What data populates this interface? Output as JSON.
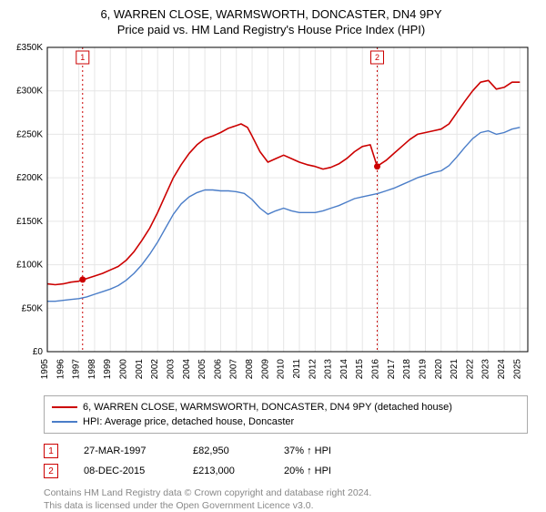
{
  "title_line1": "6, WARREN CLOSE, WARMSWORTH, DONCASTER, DN4 9PY",
  "title_line2": "Price paid vs. HM Land Registry's House Price Index (HPI)",
  "chart": {
    "type": "line",
    "plot_bg": "#ffffff",
    "grid_color": "#e6e6e6",
    "axis_color": "#000000",
    "xlim": [
      1995,
      2025.5
    ],
    "ylim": [
      0,
      350000
    ],
    "ytick_step": 50000,
    "yticks": [
      "£0",
      "£50K",
      "£100K",
      "£150K",
      "£200K",
      "£250K",
      "£300K",
      "£350K"
    ],
    "xticks": [
      1995,
      1996,
      1997,
      1998,
      1999,
      2000,
      2001,
      2002,
      2003,
      2004,
      2005,
      2006,
      2007,
      2008,
      2009,
      2010,
      2011,
      2012,
      2013,
      2014,
      2015,
      2016,
      2017,
      2018,
      2019,
      2020,
      2021,
      2022,
      2023,
      2024,
      2025
    ],
    "label_fontsize": 10,
    "series": [
      {
        "name": "6, WARREN CLOSE, WARMSWORTH, DONCASTER, DN4 9PY (detached house)",
        "color": "#cc0000",
        "width": 1.6,
        "data": [
          [
            1995,
            78000
          ],
          [
            1995.5,
            77000
          ],
          [
            1996,
            78000
          ],
          [
            1996.5,
            80000
          ],
          [
            1997,
            81000
          ],
          [
            1997.24,
            82950
          ],
          [
            1997.5,
            84000
          ],
          [
            1998,
            87000
          ],
          [
            1998.5,
            90000
          ],
          [
            1999,
            94000
          ],
          [
            1999.5,
            98000
          ],
          [
            2000,
            105000
          ],
          [
            2000.5,
            115000
          ],
          [
            2001,
            128000
          ],
          [
            2001.5,
            142000
          ],
          [
            2002,
            160000
          ],
          [
            2002.5,
            180000
          ],
          [
            2003,
            200000
          ],
          [
            2003.5,
            215000
          ],
          [
            2004,
            228000
          ],
          [
            2004.5,
            238000
          ],
          [
            2005,
            245000
          ],
          [
            2005.5,
            248000
          ],
          [
            2006,
            252000
          ],
          [
            2006.5,
            257000
          ],
          [
            2007,
            260000
          ],
          [
            2007.3,
            262000
          ],
          [
            2007.7,
            258000
          ],
          [
            2008,
            248000
          ],
          [
            2008.5,
            230000
          ],
          [
            2009,
            218000
          ],
          [
            2009.5,
            222000
          ],
          [
            2010,
            226000
          ],
          [
            2010.5,
            222000
          ],
          [
            2011,
            218000
          ],
          [
            2011.5,
            215000
          ],
          [
            2012,
            213000
          ],
          [
            2012.5,
            210000
          ],
          [
            2013,
            212000
          ],
          [
            2013.5,
            216000
          ],
          [
            2014,
            222000
          ],
          [
            2014.5,
            230000
          ],
          [
            2015,
            236000
          ],
          [
            2015.5,
            238000
          ],
          [
            2015.94,
            213000
          ],
          [
            2016,
            214000
          ],
          [
            2016.5,
            220000
          ],
          [
            2017,
            228000
          ],
          [
            2017.5,
            236000
          ],
          [
            2018,
            244000
          ],
          [
            2018.5,
            250000
          ],
          [
            2019,
            252000
          ],
          [
            2019.5,
            254000
          ],
          [
            2020,
            256000
          ],
          [
            2020.5,
            262000
          ],
          [
            2021,
            275000
          ],
          [
            2021.5,
            288000
          ],
          [
            2022,
            300000
          ],
          [
            2022.5,
            310000
          ],
          [
            2023,
            312000
          ],
          [
            2023.5,
            302000
          ],
          [
            2024,
            304000
          ],
          [
            2024.5,
            310000
          ],
          [
            2025,
            310000
          ]
        ]
      },
      {
        "name": "HPI: Average price, detached house, Doncaster",
        "color": "#4a7dc8",
        "width": 1.4,
        "data": [
          [
            1995,
            58000
          ],
          [
            1995.5,
            58000
          ],
          [
            1996,
            59000
          ],
          [
            1996.5,
            60000
          ],
          [
            1997,
            61000
          ],
          [
            1997.5,
            63000
          ],
          [
            1998,
            66000
          ],
          [
            1998.5,
            69000
          ],
          [
            1999,
            72000
          ],
          [
            1999.5,
            76000
          ],
          [
            2000,
            82000
          ],
          [
            2000.5,
            90000
          ],
          [
            2001,
            100000
          ],
          [
            2001.5,
            112000
          ],
          [
            2002,
            126000
          ],
          [
            2002.5,
            142000
          ],
          [
            2003,
            158000
          ],
          [
            2003.5,
            170000
          ],
          [
            2004,
            178000
          ],
          [
            2004.5,
            183000
          ],
          [
            2005,
            186000
          ],
          [
            2005.5,
            186000
          ],
          [
            2006,
            185000
          ],
          [
            2006.5,
            185000
          ],
          [
            2007,
            184000
          ],
          [
            2007.5,
            182000
          ],
          [
            2008,
            175000
          ],
          [
            2008.5,
            165000
          ],
          [
            2009,
            158000
          ],
          [
            2009.5,
            162000
          ],
          [
            2010,
            165000
          ],
          [
            2010.5,
            162000
          ],
          [
            2011,
            160000
          ],
          [
            2011.5,
            160000
          ],
          [
            2012,
            160000
          ],
          [
            2012.5,
            162000
          ],
          [
            2013,
            165000
          ],
          [
            2013.5,
            168000
          ],
          [
            2014,
            172000
          ],
          [
            2014.5,
            176000
          ],
          [
            2015,
            178000
          ],
          [
            2015.5,
            180000
          ],
          [
            2016,
            182000
          ],
          [
            2016.5,
            185000
          ],
          [
            2017,
            188000
          ],
          [
            2017.5,
            192000
          ],
          [
            2018,
            196000
          ],
          [
            2018.5,
            200000
          ],
          [
            2019,
            203000
          ],
          [
            2019.5,
            206000
          ],
          [
            2020,
            208000
          ],
          [
            2020.5,
            214000
          ],
          [
            2021,
            224000
          ],
          [
            2021.5,
            235000
          ],
          [
            2022,
            245000
          ],
          [
            2022.5,
            252000
          ],
          [
            2023,
            254000
          ],
          [
            2023.5,
            250000
          ],
          [
            2024,
            252000
          ],
          [
            2024.5,
            256000
          ],
          [
            2025,
            258000
          ]
        ]
      }
    ],
    "sale_markers": [
      {
        "n": "1",
        "x": 1997.24,
        "y": 82950,
        "color": "#cc0000"
      },
      {
        "n": "2",
        "x": 2015.94,
        "y": 213000,
        "color": "#cc0000"
      }
    ]
  },
  "legend": {
    "items": [
      {
        "color": "#cc0000",
        "label": "6, WARREN CLOSE, WARMSWORTH, DONCASTER, DN4 9PY (detached house)"
      },
      {
        "color": "#4a7dc8",
        "label": "HPI: Average price, detached house, Doncaster"
      }
    ]
  },
  "marker_rows": [
    {
      "n": "1",
      "color": "#cc0000",
      "date": "27-MAR-1997",
      "price": "£82,950",
      "hpi": "37% ↑ HPI"
    },
    {
      "n": "2",
      "color": "#cc0000",
      "date": "08-DEC-2015",
      "price": "£213,000",
      "hpi": "20% ↑ HPI"
    }
  ],
  "footnote_line1": "Contains HM Land Registry data © Crown copyright and database right 2024.",
  "footnote_line2": "This data is licensed under the Open Government Licence v3.0."
}
